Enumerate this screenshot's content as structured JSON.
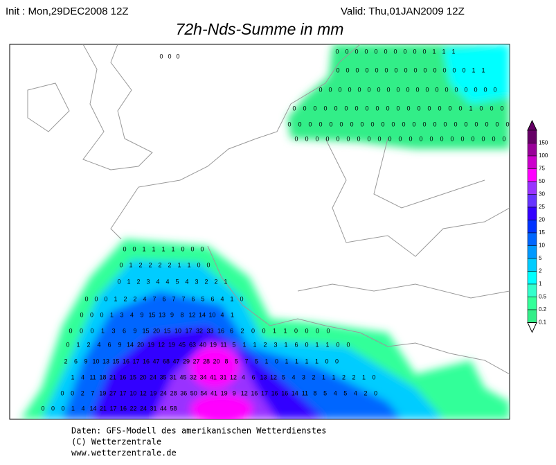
{
  "header": {
    "init": "Init : Mon,29DEC2008 12Z",
    "valid": "Valid: Thu,01JAN2009 12Z",
    "title": "72h-Nds-Summe in mm"
  },
  "colorbar": {
    "levels": [
      150,
      100,
      75,
      50,
      30,
      25,
      20,
      15,
      10,
      5,
      2,
      1,
      0.5,
      0.2,
      0.1
    ],
    "colors": [
      "#660066",
      "#990099",
      "#cc00cc",
      "#ff00ff",
      "#9933ff",
      "#6633ff",
      "#3300ff",
      "#0033ff",
      "#0066ff",
      "#0099ff",
      "#00ccff",
      "#00ffff",
      "#33ffcc",
      "#33ff99",
      "#33ee88"
    ]
  },
  "grid_rows": [
    [
      0,
      0,
      0
    ],
    [
      0,
      0,
      0,
      0,
      0,
      0,
      0,
      0,
      0,
      0,
      1,
      1,
      1
    ],
    [
      0,
      0,
      0,
      0,
      0,
      0,
      0,
      0,
      0,
      0,
      0,
      0,
      0,
      0,
      1,
      1
    ],
    [
      0,
      0,
      0,
      0,
      0,
      0,
      0,
      0,
      0,
      0,
      0,
      0,
      0,
      0,
      0,
      0,
      0,
      0,
      0
    ],
    [
      0,
      0,
      0,
      0,
      0,
      0,
      0,
      0,
      0,
      0,
      0,
      0,
      0,
      0,
      0,
      0,
      0,
      1,
      0,
      0,
      0,
      0
    ],
    [
      0,
      0,
      0,
      0,
      0,
      0,
      0,
      0,
      0,
      0,
      0,
      0,
      0,
      0,
      0,
      0,
      0,
      0,
      0,
      0,
      0,
      0
    ],
    [
      0,
      0,
      0,
      0,
      0,
      0,
      0,
      0,
      0,
      0,
      0,
      0,
      0,
      0,
      0,
      0,
      0,
      0,
      0,
      0,
      0
    ],
    [
      0,
      0,
      1,
      1,
      1,
      1,
      0,
      0,
      0
    ],
    [
      0,
      1,
      2,
      2,
      2,
      2,
      1,
      1,
      0,
      0
    ],
    [
      0,
      1,
      2,
      3,
      4,
      4,
      5,
      4,
      3,
      2,
      2,
      1
    ],
    [
      0,
      0,
      0,
      1,
      2,
      2,
      4,
      7,
      6,
      7,
      7,
      6,
      5,
      6,
      4,
      1,
      0
    ],
    [
      0,
      0,
      0,
      1,
      3,
      4,
      9,
      15,
      13,
      9,
      8,
      12,
      14,
      10,
      4,
      1
    ],
    [
      0,
      0,
      0,
      1,
      3,
      6,
      9,
      15,
      20,
      15,
      10,
      17,
      32,
      33,
      16,
      6,
      2,
      0,
      0,
      1,
      1,
      0,
      0,
      0,
      0
    ],
    [
      0,
      1,
      2,
      4,
      6,
      9,
      14,
      20,
      19,
      12,
      19,
      45,
      63,
      40,
      19,
      11,
      5,
      1,
      1,
      2,
      3,
      1,
      6,
      0,
      1,
      1,
      0,
      0
    ],
    [
      2,
      6,
      9,
      10,
      13,
      15,
      16,
      17,
      16,
      47,
      68,
      47,
      29,
      27,
      28,
      20,
      8,
      5,
      7,
      5,
      1,
      0,
      1,
      1,
      1,
      1,
      0,
      0
    ],
    [
      1,
      4,
      11,
      18,
      21,
      16,
      15,
      20,
      24,
      35,
      31,
      45,
      32,
      34,
      41,
      31,
      12,
      4,
      6,
      13,
      12,
      5,
      4,
      3,
      2,
      1,
      1,
      2,
      2,
      1,
      0
    ],
    [
      0,
      0,
      2,
      7,
      19,
      27,
      17,
      10,
      12,
      19,
      24,
      28,
      36,
      50,
      54,
      41,
      19,
      9,
      12,
      16,
      17,
      16,
      16,
      14,
      11,
      8,
      5,
      4,
      5,
      4,
      2,
      0
    ],
    [
      0,
      0,
      0,
      1,
      4,
      14,
      21,
      17,
      16,
      22,
      24,
      31,
      44,
      58
    ]
  ],
  "footer": [
    "Daten: GFS-Modell des amerikanischen Wetterdienstes",
    "(C) Wetterzentrale",
    "www.wetterzentrale.de"
  ]
}
